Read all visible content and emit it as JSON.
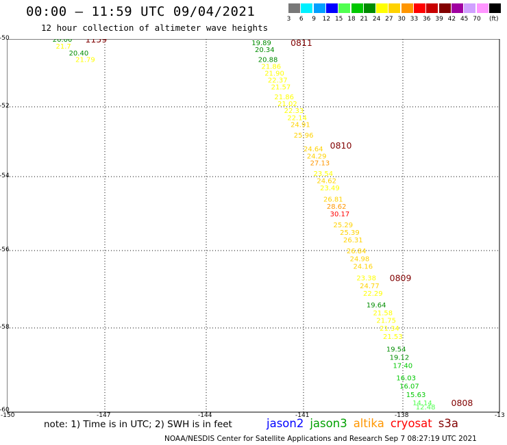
{
  "header": {
    "title": "00:00 – 11:59 UTC 09/04/2021",
    "subtitle": "12 hour collection of altimeter wave heights"
  },
  "legend": {
    "unit": "(ft)",
    "bins": [
      {
        "label": "3",
        "color": "#787878"
      },
      {
        "label": "6",
        "color": "#00f0ff"
      },
      {
        "label": "9",
        "color": "#00a0ff"
      },
      {
        "label": "12",
        "color": "#0000ff"
      },
      {
        "label": "15",
        "color": "#50ff50"
      },
      {
        "label": "18",
        "color": "#00c800"
      },
      {
        "label": "21",
        "color": "#008c00"
      },
      {
        "label": "24",
        "color": "#ffff00"
      },
      {
        "label": "27",
        "color": "#ffd200"
      },
      {
        "label": "30",
        "color": "#ff9600"
      },
      {
        "label": "33",
        "color": "#ff0000"
      },
      {
        "label": "36",
        "color": "#c80000"
      },
      {
        "label": "39",
        "color": "#820000"
      },
      {
        "label": "42",
        "color": "#a000a0"
      },
      {
        "label": "45",
        "color": "#d0a0ff"
      },
      {
        "label": "70",
        "color": "#ff96ff"
      },
      {
        "label": "",
        "color": "#000000"
      }
    ]
  },
  "map": {
    "lat_labels": [
      "-50",
      "-52",
      "-54",
      "-56",
      "-58",
      "-60"
    ],
    "lon_labels": [
      "-150",
      "-147",
      "-144",
      "-141",
      "-138",
      "-13"
    ],
    "time_labels": [
      {
        "text": "1159",
        "lon": -147.6,
        "lat": -50.0
      },
      {
        "text": "0811",
        "lon": -141.4,
        "lat": -50.1
      },
      {
        "text": "0810",
        "lon": -140.2,
        "lat": -53.1
      },
      {
        "text": "0809",
        "lon": -138.4,
        "lat": -56.7
      },
      {
        "text": "0808",
        "lon": -136.5,
        "lat": -59.8
      }
    ],
    "tracks": [
      {
        "name": "cryosat-west",
        "points": [
          {
            "lon": -148.6,
            "lat": -50.0,
            "v": "20.00",
            "c": "#008c00"
          },
          {
            "lon": -148.5,
            "lat": -50.2,
            "v": "21.7",
            "c": "#ffff00"
          },
          {
            "lon": -148.1,
            "lat": -50.4,
            "v": "20.40",
            "c": "#008c00"
          },
          {
            "lon": -147.9,
            "lat": -50.6,
            "v": "21.79",
            "c": "#ffff00"
          }
        ]
      },
      {
        "name": "cryosat-main",
        "points": [
          {
            "lon": -142.6,
            "lat": -50.1,
            "v": "19.89",
            "c": "#008c00"
          },
          {
            "lon": -142.5,
            "lat": -50.3,
            "v": "20.34",
            "c": "#008c00"
          },
          {
            "lon": -142.4,
            "lat": -50.6,
            "v": "20.88",
            "c": "#008c00"
          },
          {
            "lon": -142.3,
            "lat": -50.8,
            "v": "21.86",
            "c": "#ffff00"
          },
          {
            "lon": -142.2,
            "lat": -51.0,
            "v": "21.90",
            "c": "#ffff00"
          },
          {
            "lon": -142.1,
            "lat": -51.2,
            "v": "22.37",
            "c": "#ffff00"
          },
          {
            "lon": -142.0,
            "lat": -51.4,
            "v": "21.57",
            "c": "#ffff00"
          },
          {
            "lon": -141.9,
            "lat": -51.7,
            "v": "21.86",
            "c": "#ffff00"
          },
          {
            "lon": -141.8,
            "lat": -51.9,
            "v": "21.02",
            "c": "#ffff00"
          },
          {
            "lon": -141.6,
            "lat": -52.1,
            "v": "22.33",
            "c": "#ffff00"
          },
          {
            "lon": -141.5,
            "lat": -52.3,
            "v": "22.14",
            "c": "#ffff00"
          },
          {
            "lon": -141.4,
            "lat": -52.5,
            "v": "24.91",
            "c": "#ffd200"
          },
          {
            "lon": -141.3,
            "lat": -52.8,
            "v": "25.96",
            "c": "#ffd200"
          },
          {
            "lon": -141.0,
            "lat": -53.2,
            "v": "24.64",
            "c": "#ffd200"
          },
          {
            "lon": -140.9,
            "lat": -53.4,
            "v": "24.29",
            "c": "#ffd200"
          },
          {
            "lon": -140.8,
            "lat": -53.6,
            "v": "27.13",
            "c": "#ff9600"
          },
          {
            "lon": -140.7,
            "lat": -53.9,
            "v": "23.54",
            "c": "#ffff00"
          },
          {
            "lon": -140.6,
            "lat": -54.1,
            "v": "24.62",
            "c": "#ffd200"
          },
          {
            "lon": -140.5,
            "lat": -54.3,
            "v": "23.49",
            "c": "#ffff00"
          },
          {
            "lon": -140.4,
            "lat": -54.6,
            "v": "26.81",
            "c": "#ffd200"
          },
          {
            "lon": -140.3,
            "lat": -54.8,
            "v": "28.62",
            "c": "#ff9600"
          },
          {
            "lon": -140.2,
            "lat": -55.0,
            "v": "30.17",
            "c": "#ff0000"
          },
          {
            "lon": -140.1,
            "lat": -55.3,
            "v": "25.29",
            "c": "#ffd200"
          },
          {
            "lon": -139.9,
            "lat": -55.5,
            "v": "25.39",
            "c": "#ffd200"
          },
          {
            "lon": -139.8,
            "lat": -55.7,
            "v": "26.31",
            "c": "#ffd200"
          },
          {
            "lon": -139.7,
            "lat": -56.0,
            "v": "26.84",
            "c": "#ffd200"
          },
          {
            "lon": -139.6,
            "lat": -56.2,
            "v": "24.98",
            "c": "#ffd200"
          },
          {
            "lon": -139.5,
            "lat": -56.4,
            "v": "24.16",
            "c": "#ffd200"
          },
          {
            "lon": -139.4,
            "lat": -56.7,
            "v": "23.38",
            "c": "#ffff00"
          },
          {
            "lon": -139.3,
            "lat": -56.9,
            "v": "24.77",
            "c": "#ffd200"
          },
          {
            "lon": -139.2,
            "lat": -57.1,
            "v": "22.29",
            "c": "#ffff00"
          },
          {
            "lon": -139.1,
            "lat": -57.4,
            "v": "19.64",
            "c": "#008c00"
          },
          {
            "lon": -138.9,
            "lat": -57.6,
            "v": "21.58",
            "c": "#ffff00"
          },
          {
            "lon": -138.8,
            "lat": -57.8,
            "v": "21.75",
            "c": "#ffff00"
          },
          {
            "lon": -138.7,
            "lat": -58.0,
            "v": "21.34",
            "c": "#ffff00"
          },
          {
            "lon": -138.6,
            "lat": -58.2,
            "v": "21.53",
            "c": "#ffff00"
          },
          {
            "lon": -138.5,
            "lat": -58.5,
            "v": "19.54",
            "c": "#008c00"
          },
          {
            "lon": -138.4,
            "lat": -58.7,
            "v": "19.12",
            "c": "#008c00"
          },
          {
            "lon": -138.3,
            "lat": -58.9,
            "v": "17.40",
            "c": "#00c800"
          },
          {
            "lon": -138.2,
            "lat": -59.2,
            "v": "16.03",
            "c": "#00c800"
          },
          {
            "lon": -138.1,
            "lat": -59.4,
            "v": "16.07",
            "c": "#00c800"
          },
          {
            "lon": -137.9,
            "lat": -59.6,
            "v": "15.63",
            "c": "#00c800"
          },
          {
            "lon": -137.7,
            "lat": -59.8,
            "v": "14.14",
            "c": "#50ff50"
          },
          {
            "lon": -137.6,
            "lat": -59.9,
            "v": "12.48",
            "c": "#50ff50"
          }
        ]
      }
    ]
  },
  "footer": {
    "note": "note: 1) Time is in UTC; 2) SWH is in feet",
    "satellites": [
      {
        "name": "jason2",
        "color": "#0000ff"
      },
      {
        "name": "jason3",
        "color": "#00a000"
      },
      {
        "name": "altika",
        "color": "#ff9600"
      },
      {
        "name": "cryosat",
        "color": "#ff0000"
      },
      {
        "name": "s3a",
        "color": "#820000"
      }
    ],
    "credit": "NOAA/NESDIS Center for Satellite Applications and Research    Sep  7 08:27:19 UTC 2021"
  }
}
